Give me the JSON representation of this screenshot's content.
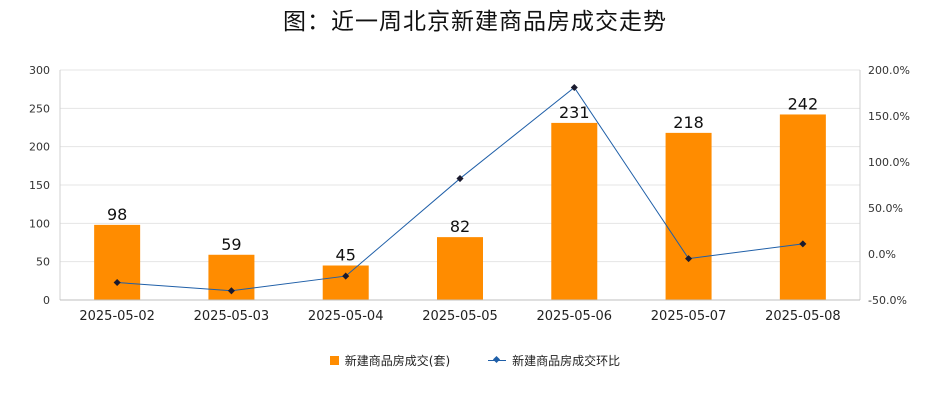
{
  "chart_data": {
    "type": "bar",
    "title": "图：近一周北京新建商品房成交走势",
    "categories": [
      "2025-05-02",
      "2025-05-03",
      "2025-05-04",
      "2025-05-05",
      "2025-05-06",
      "2025-05-07",
      "2025-05-08"
    ],
    "series": [
      {
        "name": "新建商品房成交(套)",
        "type": "bar",
        "axis": "left",
        "color": "#ff8c00",
        "values": [
          98,
          59,
          45,
          82,
          231,
          218,
          242
        ],
        "data_labels": [
          "98",
          "59",
          "45",
          "82",
          "231",
          "218",
          "242"
        ]
      },
      {
        "name": "新建商品房成交环比",
        "type": "line",
        "axis": "right",
        "color": "#1f5fa8",
        "values": [
          -31,
          -40,
          -24,
          82,
          181,
          -5,
          11
        ]
      }
    ],
    "ylim": [
      0,
      300
    ],
    "y_ticks": [
      "0",
      "50",
      "100",
      "150",
      "200",
      "250",
      "300"
    ],
    "y2lim": [
      -50,
      200
    ],
    "y2_ticks": [
      "-50.0%",
      "0.0%",
      "50.0%",
      "100.0%",
      "150.0%",
      "200.0%"
    ],
    "grid": true,
    "legend_position": "bottom"
  }
}
